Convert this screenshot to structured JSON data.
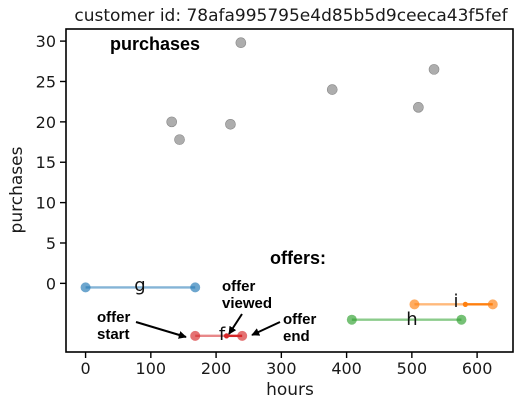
{
  "chart_data": {
    "type": "scatter",
    "title": "customer id: 78afa995795e4d85b5d9ceeca43f5fef",
    "xlabel": "hours",
    "ylabel": "purchases",
    "xlim": [
      -30,
      655
    ],
    "ylim": [
      -8.5,
      31.5
    ],
    "xticks": [
      0,
      100,
      200,
      300,
      400,
      500,
      600
    ],
    "yticks": [
      0,
      5,
      10,
      15,
      20,
      25,
      30
    ],
    "purchases_label": "purchases",
    "offers_label": "offers:",
    "purchases": [
      {
        "x": 132,
        "y": 20.0
      },
      {
        "x": 144,
        "y": 17.8
      },
      {
        "x": 222,
        "y": 19.7
      },
      {
        "x": 238,
        "y": 29.8
      },
      {
        "x": 378,
        "y": 24.0
      },
      {
        "x": 510,
        "y": 21.8
      },
      {
        "x": 534,
        "y": 26.5
      }
    ],
    "purchase_color": "#999999",
    "offers": [
      {
        "label": "g",
        "start": 0,
        "viewed": 168,
        "end": 168,
        "y": -0.5,
        "color": "#1f77b4"
      },
      {
        "label": "f",
        "start": 168,
        "viewed": 216,
        "end": 240,
        "y": -6.5,
        "color": "#d62728"
      },
      {
        "label": "h",
        "start": 408,
        "viewed": 576,
        "end": 576,
        "y": -4.5,
        "color": "#2ca02c"
      },
      {
        "label": "i",
        "start": 504,
        "viewed": 582,
        "end": 624,
        "y": -2.6,
        "color": "#ff7f0e"
      }
    ],
    "annotations": [
      {
        "key": "start",
        "lines": [
          "offer",
          "start"
        ]
      },
      {
        "key": "viewed",
        "lines": [
          "offer",
          "viewed"
        ]
      },
      {
        "key": "end",
        "lines": [
          "offer",
          "end"
        ]
      }
    ]
  }
}
